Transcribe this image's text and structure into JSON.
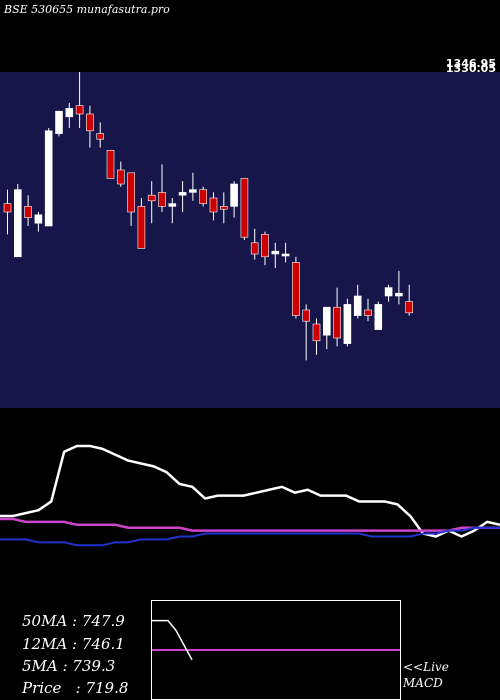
{
  "header": {
    "title": "BSE 530655 munafasutra.pro"
  },
  "price_labels": [
    "1346.95",
    "1330.05"
  ],
  "colors": {
    "panel_bg": "#16164a",
    "bull": "#ffffff",
    "bear": "#cc0000",
    "line_white": "#ffffff",
    "line_magenta": "#cc44cc",
    "line_blue": "#2233cc"
  },
  "stats": {
    "ma50": "50MA : 747.9",
    "ma12": "12MA : 746.1",
    "ma5": "5MA : 739.3",
    "price": "Price   : 719.8"
  },
  "macd": {
    "live": "<<Live",
    "label": "MACD"
  },
  "chart_data": [
    {
      "type": "candlestick",
      "title": "BSE 530655 munafasutra.pro",
      "ylim": [
        690,
        810
      ],
      "candles": [
        {
          "o": 763,
          "h": 768,
          "l": 752,
          "c": 760
        },
        {
          "o": 744,
          "h": 770,
          "l": 744,
          "c": 768
        },
        {
          "o": 762,
          "h": 766,
          "l": 755,
          "c": 758
        },
        {
          "o": 756,
          "h": 760,
          "l": 753,
          "c": 759
        },
        {
          "o": 755,
          "h": 790,
          "l": 755,
          "c": 789
        },
        {
          "o": 788,
          "h": 796,
          "l": 787,
          "c": 796
        },
        {
          "o": 794,
          "h": 799,
          "l": 790,
          "c": 797
        },
        {
          "o": 798,
          "h": 810,
          "l": 790,
          "c": 795
        },
        {
          "o": 795,
          "h": 798,
          "l": 783,
          "c": 789
        },
        {
          "o": 788,
          "h": 792,
          "l": 783,
          "c": 786
        },
        {
          "o": 782,
          "h": 782,
          "l": 772,
          "c": 772
        },
        {
          "o": 775,
          "h": 778,
          "l": 769,
          "c": 770
        },
        {
          "o": 774,
          "h": 774,
          "l": 755,
          "c": 760
        },
        {
          "o": 762,
          "h": 765,
          "l": 747,
          "c": 747
        },
        {
          "o": 766,
          "h": 771,
          "l": 756,
          "c": 764
        },
        {
          "o": 767,
          "h": 777,
          "l": 760,
          "c": 762
        },
        {
          "o": 762,
          "h": 765,
          "l": 756,
          "c": 763
        },
        {
          "o": 766,
          "h": 771,
          "l": 760,
          "c": 767
        },
        {
          "o": 767,
          "h": 774,
          "l": 764,
          "c": 768
        },
        {
          "o": 768,
          "h": 769,
          "l": 762,
          "c": 763
        },
        {
          "o": 765,
          "h": 767,
          "l": 757,
          "c": 760
        },
        {
          "o": 762,
          "h": 767,
          "l": 756,
          "c": 761
        },
        {
          "o": 762,
          "h": 771,
          "l": 758,
          "c": 770
        },
        {
          "o": 772,
          "h": 772,
          "l": 750,
          "c": 751
        },
        {
          "o": 749,
          "h": 754,
          "l": 743,
          "c": 745
        },
        {
          "o": 752,
          "h": 753,
          "l": 741,
          "c": 744
        },
        {
          "o": 745,
          "h": 749,
          "l": 740,
          "c": 746
        },
        {
          "o": 745,
          "h": 749,
          "l": 742,
          "c": 745
        },
        {
          "o": 742,
          "h": 744,
          "l": 722,
          "c": 723
        },
        {
          "o": 725,
          "h": 727,
          "l": 707,
          "c": 721
        },
        {
          "o": 720,
          "h": 722,
          "l": 709,
          "c": 714
        },
        {
          "o": 716,
          "h": 725,
          "l": 711,
          "c": 726
        },
        {
          "o": 726,
          "h": 733,
          "l": 712,
          "c": 715
        },
        {
          "o": 713,
          "h": 729,
          "l": 712,
          "c": 727
        },
        {
          "o": 723,
          "h": 734,
          "l": 722,
          "c": 730
        },
        {
          "o": 725,
          "h": 729,
          "l": 721,
          "c": 723
        },
        {
          "o": 718,
          "h": 728,
          "l": 718,
          "c": 727
        },
        {
          "o": 730,
          "h": 734,
          "l": 728,
          "c": 733
        },
        {
          "o": 730,
          "h": 739,
          "l": 727,
          "c": 731
        },
        {
          "o": 728,
          "h": 734,
          "l": 723,
          "c": 724
        }
      ]
    },
    {
      "type": "line",
      "ylim": [
        0,
        100
      ],
      "x": [
        0,
        1,
        2,
        3,
        4,
        5,
        6,
        7,
        8,
        9,
        10,
        11,
        12,
        13,
        14,
        15,
        16,
        17,
        18,
        19,
        20,
        21,
        22,
        23,
        24,
        25,
        26,
        27,
        28,
        29,
        30,
        31,
        32,
        33,
        34,
        35,
        36,
        37,
        38,
        39
      ],
      "series": [
        {
          "values": [
            63,
            63,
            64,
            65,
            68,
            85,
            87,
            87,
            86,
            84,
            82,
            81,
            80,
            78,
            74,
            73,
            69,
            70,
            70,
            70,
            71,
            72,
            73,
            71,
            72,
            70,
            70,
            70,
            68,
            68,
            68,
            67,
            63,
            57,
            56,
            58,
            56,
            58,
            61,
            60
          ]
        },
        {
          "values": [
            62,
            62,
            61,
            61,
            61,
            61,
            60,
            60,
            60,
            60,
            59,
            59,
            59,
            59,
            59,
            58,
            58,
            58,
            58,
            58,
            58,
            58,
            58,
            58,
            58,
            58,
            58,
            58,
            58,
            58,
            58,
            58,
            58,
            58,
            58,
            58,
            59,
            59,
            59,
            59
          ]
        },
        {
          "values": [
            55,
            55,
            55,
            54,
            54,
            54,
            53,
            53,
            53,
            54,
            54,
            55,
            55,
            55,
            56,
            56,
            57,
            57,
            57,
            57,
            57,
            57,
            57,
            57,
            57,
            57,
            57,
            57,
            57,
            56,
            56,
            56,
            56,
            57,
            57,
            58,
            58,
            59,
            59,
            59
          ]
        }
      ]
    },
    {
      "type": "line",
      "ylim": [
        -10,
        10
      ],
      "series": [
        {
          "values": [
            0,
            0,
            0,
            0,
            0,
            0,
            0,
            0,
            0,
            0,
            0,
            0,
            0,
            0,
            0,
            0,
            0,
            0,
            0,
            0,
            0,
            0,
            0,
            0,
            0,
            0,
            0,
            0,
            0,
            0,
            0,
            0,
            0,
            0,
            0,
            0,
            0,
            0,
            0,
            0
          ]
        },
        {
          "values": [
            6,
            6,
            6,
            4,
            1,
            -2
          ]
        }
      ]
    }
  ]
}
